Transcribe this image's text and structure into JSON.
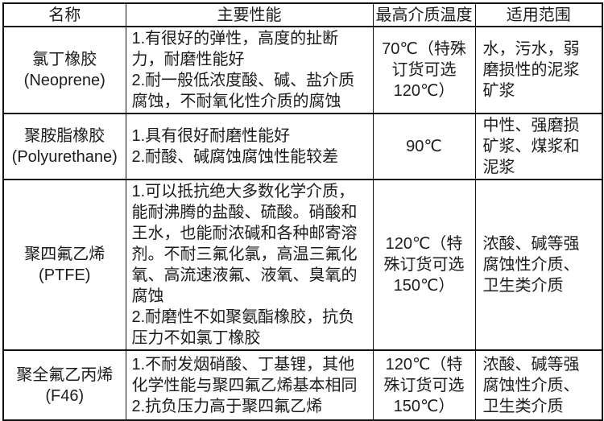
{
  "table": {
    "headers": [
      "名称",
      "主要性能",
      "最高介质温度",
      "适用范围"
    ],
    "rows": [
      {
        "name_cn": "氯丁橡胶",
        "name_en": "(Neoprene)",
        "performance": "1.有很好的弹性，高度的扯断力，耐磨性能好\n2.耐一般低浓度酸、碱、盐介质腐蚀，不耐氧化性介质的腐蚀",
        "max_temp": "70℃（特殊订货可选120℃）",
        "scope": "水，污水，弱磨损性的泥浆矿浆"
      },
      {
        "name_cn": "聚胺脂橡胶",
        "name_en": "(Polyurethane)",
        "performance": "1.具有很好耐磨性能好\n2.耐酸、碱腐蚀腐蚀性能较差",
        "max_temp": "90℃",
        "scope": "中性、强磨损矿浆、煤浆和泥浆"
      },
      {
        "name_cn": "聚四氟乙烯",
        "name_en": "(PTFE)",
        "performance": "1.可以抵抗绝大多数化学介质，能耐沸腾的盐酸、硫酸。硝酸和王水，也能耐浓碱和各种邮寄溶剂。不耐三氟化氯，高温三氟化氧、高流速液氟、液氧、臭氧的腐蚀\n2.耐磨性不如聚氨酯橡胶，抗负压力不如氯丁橡胶",
        "max_temp": "120℃（特殊订货可选150℃）",
        "scope": "浓酸、碱等强腐蚀性介质、卫生类介质"
      },
      {
        "name_cn": "聚全氟乙丙烯",
        "name_en": "(F46)",
        "performance": "1.不耐发烟硝酸、丁基锂，其他化学性能与聚四氟乙烯基本相同\n2.抗负压力高于聚四氟乙烯",
        "max_temp": "120℃（特殊订货可选150℃）",
        "scope": "浓酸、碱等强腐蚀性介质、卫生类介质"
      }
    ]
  },
  "colors": {
    "border": "#111111",
    "text": "#1c1c1c",
    "background": "#ffffff"
  }
}
